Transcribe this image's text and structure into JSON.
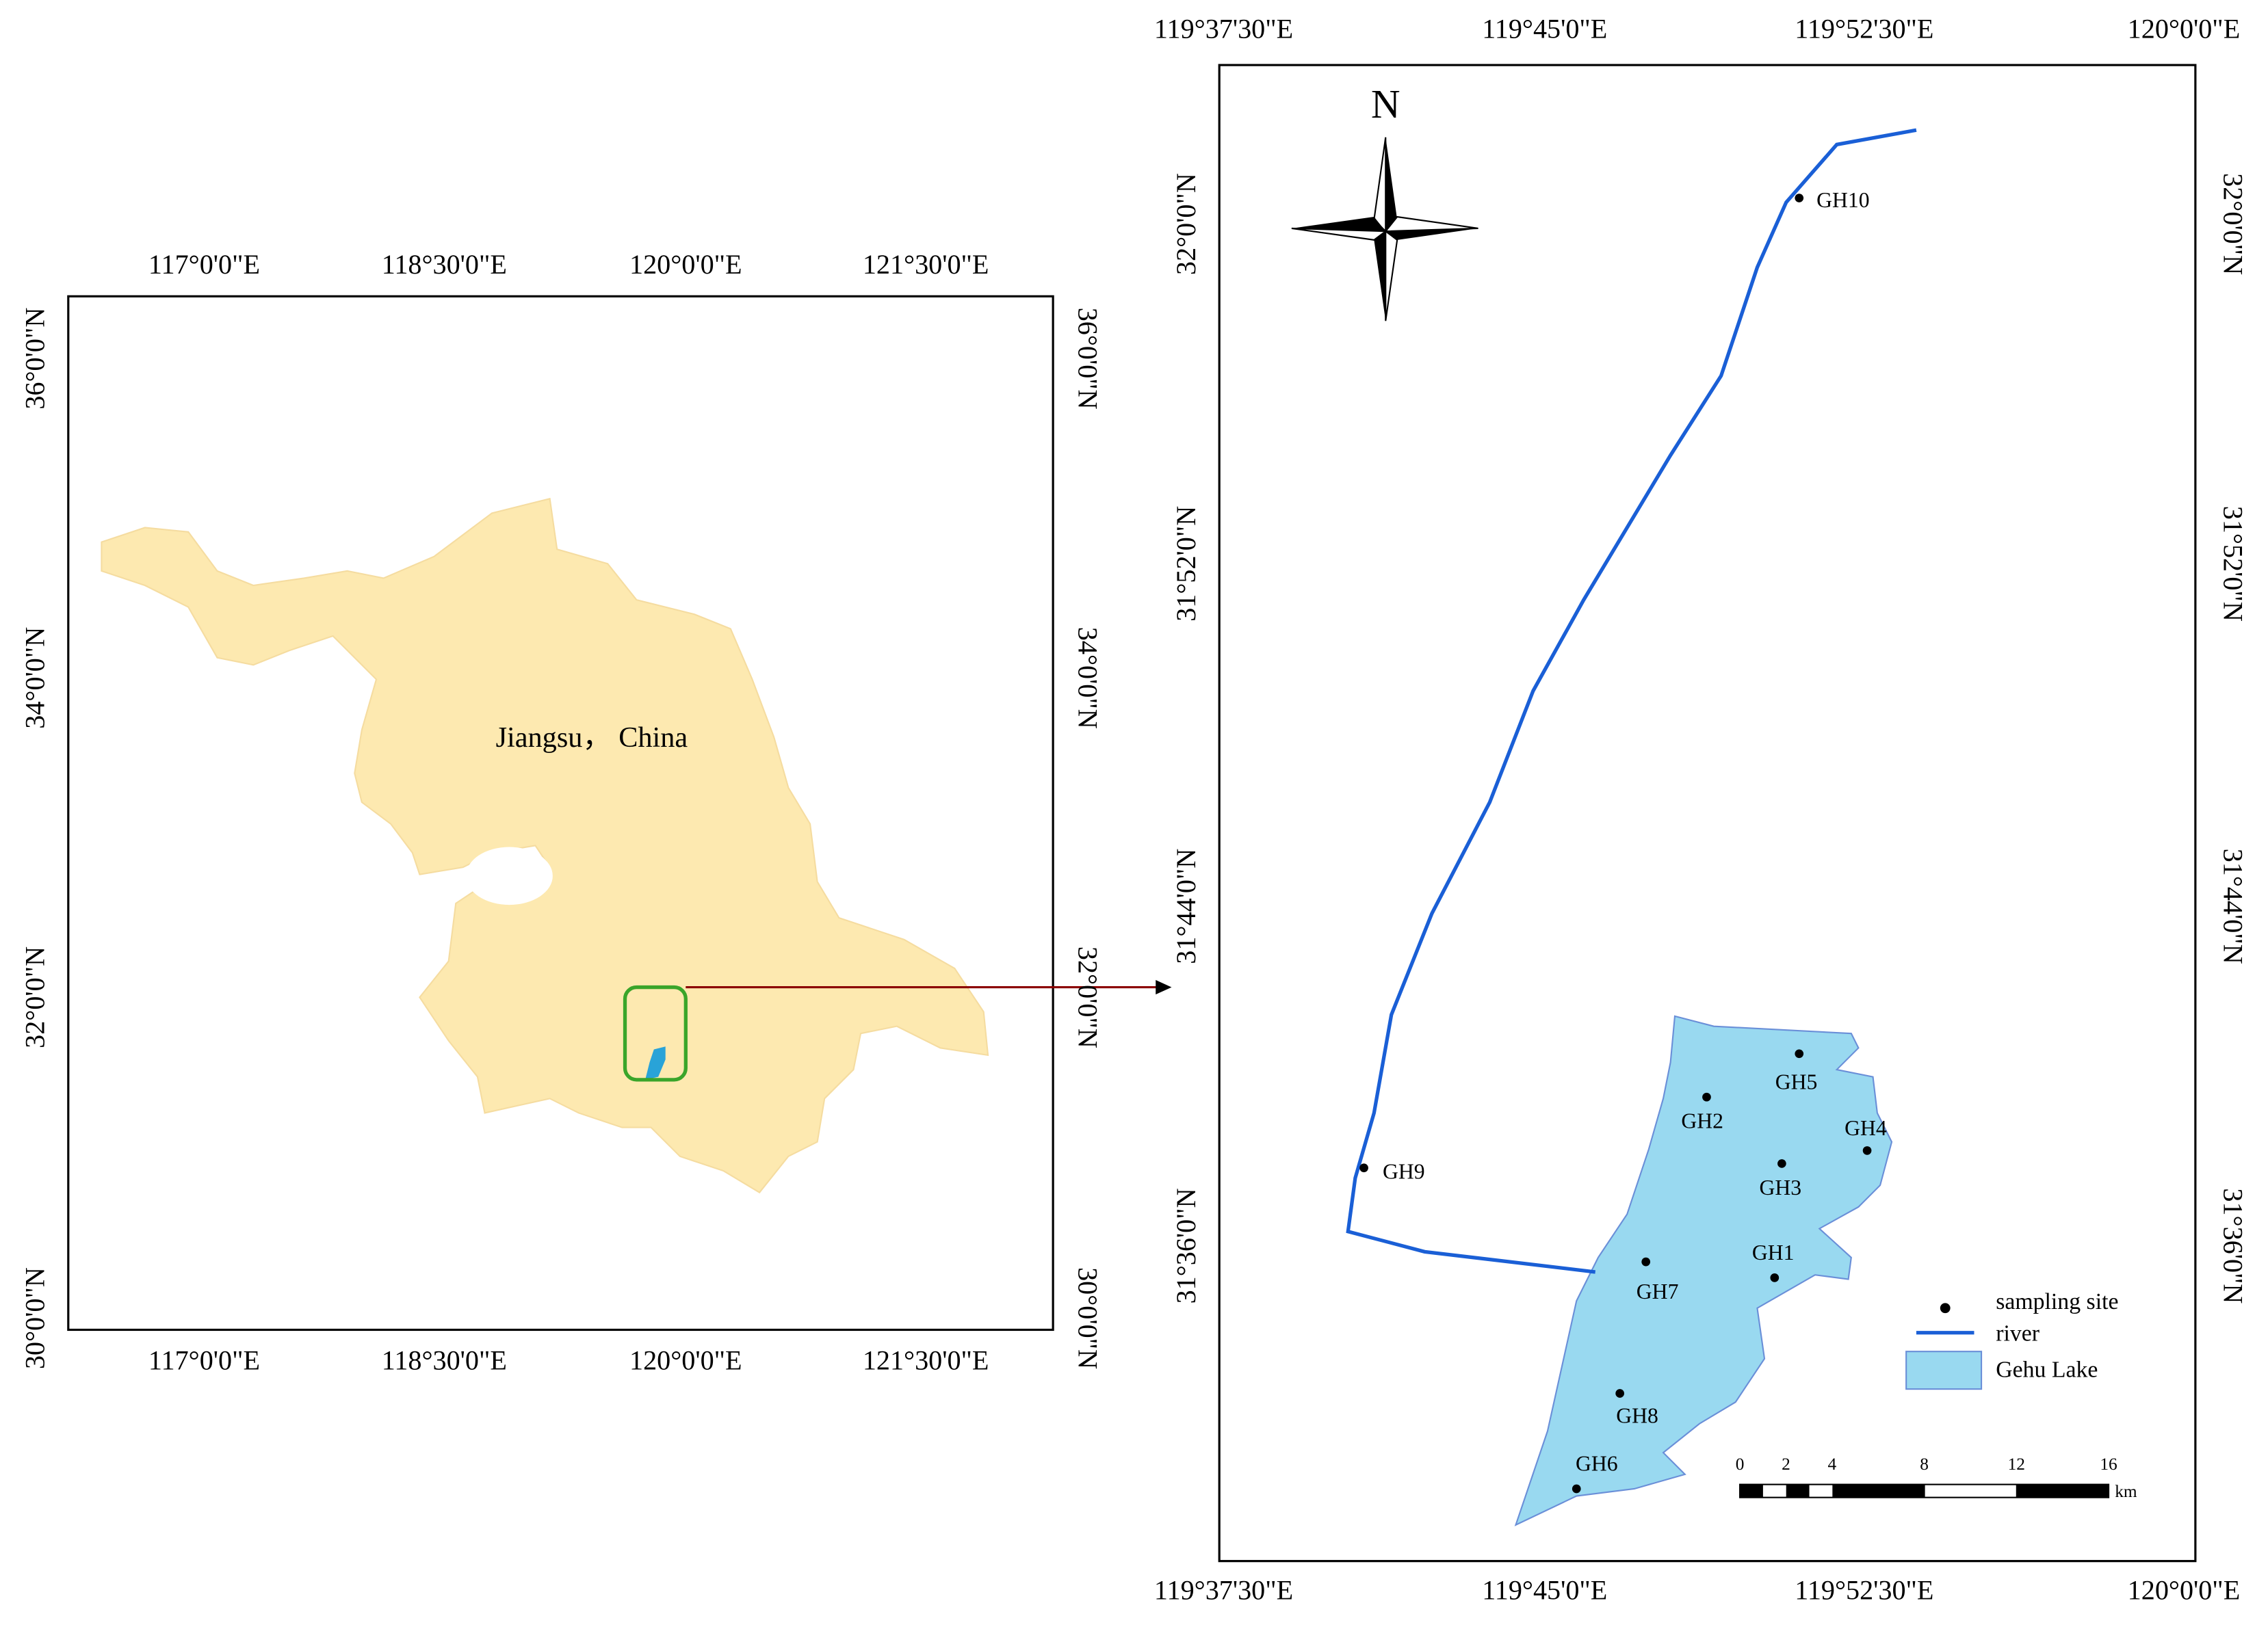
{
  "inset_map": {
    "x_labels": [
      "117°0'0\"E",
      "118°30'0\"E",
      "120°0'0\"E",
      "121°30'0\"E"
    ],
    "y_labels": [
      "36°0'0\"N",
      "34°0'0\"N",
      "32°0'0\"N",
      "30°0'0\"N"
    ],
    "region_label": "Jiangsu， China"
  },
  "detail_map": {
    "x_labels": [
      "119°37'30\"E",
      "119°45'0\"E",
      "119°52'30\"E",
      "120°0'0\"E"
    ],
    "y_labels": [
      "32°0'0\"N",
      "31°52'0\"N",
      "31°44'0\"N",
      "31°36'0\"N"
    ],
    "north": "N",
    "sites": [
      "GH10",
      "GH9",
      "GH5",
      "GH2",
      "GH4",
      "GH3",
      "GH1",
      "GH7",
      "GH8",
      "GH6"
    ],
    "legend": [
      "sampling site",
      "river",
      "Gehu Lake"
    ],
    "scale_ticks": [
      "0",
      "2",
      "4",
      "8",
      "12",
      "16"
    ],
    "scale_unit": "km"
  }
}
